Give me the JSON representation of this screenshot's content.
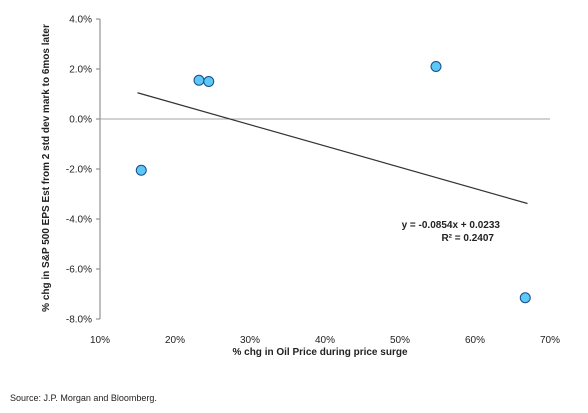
{
  "chart_data": {
    "type": "scatter",
    "xlabel": "% chg in Oil Price during price surge",
    "ylabel": "% chg in S&P 500 EPS Est from 2 std dev mark to 6mos later",
    "xlim": [
      10,
      70
    ],
    "ylim": [
      -8,
      4
    ],
    "x_ticks": [
      10,
      20,
      30,
      40,
      50,
      60,
      70
    ],
    "y_ticks": [
      -8,
      -6,
      -4,
      -2,
      0,
      2,
      4
    ],
    "x_tick_labels": [
      "10%",
      "20%",
      "30%",
      "40%",
      "50%",
      "60%",
      "70%"
    ],
    "y_tick_labels": [
      "-8.0%",
      "-6.0%",
      "-4.0%",
      "-2.0%",
      "0.0%",
      "2.0%",
      "4.0%"
    ],
    "points": [
      {
        "x": 15.5,
        "y": -2.05
      },
      {
        "x": 23.2,
        "y": 1.55
      },
      {
        "x": 24.5,
        "y": 1.5
      },
      {
        "x": 54.8,
        "y": 2.1
      },
      {
        "x": 66.7,
        "y": -7.15
      }
    ],
    "trendline": {
      "x": [
        15.0,
        67.0
      ],
      "y": [
        1.05,
        -3.38
      ],
      "equation": "y = -0.0854x + 0.0233",
      "r_squared": "R² = 0.2407"
    },
    "grid": false,
    "colors": {
      "marker_fill": "#5bc8f5",
      "marker_stroke": "#1a4a8a",
      "trendline": "#333333",
      "zero_line": "#a6a6a6"
    }
  },
  "source": "Source: J.P. Morgan and Bloomberg."
}
